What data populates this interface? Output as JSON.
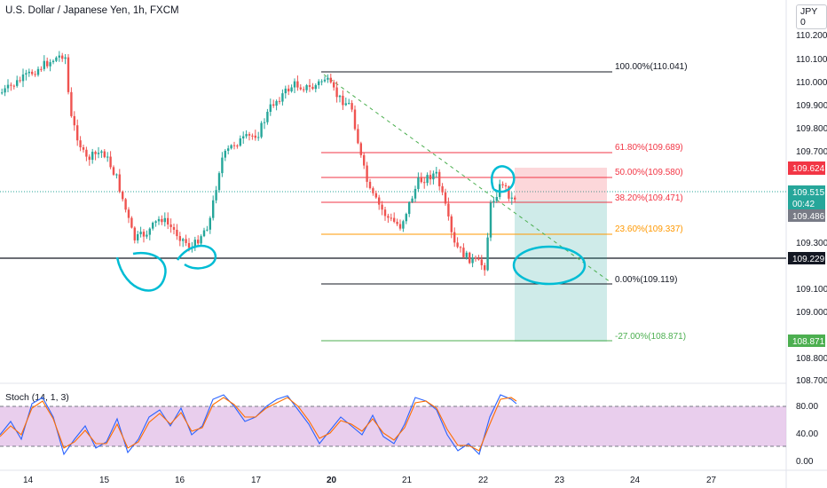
{
  "header": {
    "title": "U.S. Dollar / Japanese Yen, 1h, FXCM",
    "currency_button": "JPY 0"
  },
  "stoch": {
    "label": "Stoch (14, 1, 3)",
    "levels": [
      "80.00",
      "40.00",
      "0.00"
    ]
  },
  "price_axis": {
    "labels": [
      "110.200",
      "110.100",
      "110.000",
      "109.900",
      "109.800",
      "109.700",
      "109.300",
      "109.100",
      "109.000",
      "108.800",
      "108.700"
    ]
  },
  "price_tags": {
    "upper": "109.624",
    "last": "109.515",
    "countdown": "00:42",
    "lower": "109.486",
    "horizontal_line": "109.229",
    "target": "108.871"
  },
  "fib_levels": [
    {
      "label": "100.00%(110.041)",
      "color": "#131722"
    },
    {
      "label": "61.80%(109.689)",
      "color": "#f23645"
    },
    {
      "label": "50.00%(109.580)",
      "color": "#f23645"
    },
    {
      "label": "38.20%(109.471)",
      "color": "#f23645"
    },
    {
      "label": "23.60%(109.337)",
      "color": "#ff9800"
    },
    {
      "label": "0.00%(109.119)",
      "color": "#131722"
    },
    {
      "label": "-27.00%(108.871)",
      "color": "#4caf50"
    }
  ],
  "time_axis": {
    "labels": [
      "14",
      "15",
      "16",
      "17",
      "20",
      "21",
      "22",
      "23",
      "24",
      "27"
    ]
  },
  "colors": {
    "bull": "#26a69a",
    "bear": "#ef5350",
    "annotation": "#00bcd4",
    "stoch_band": "#e1bee7"
  }
}
